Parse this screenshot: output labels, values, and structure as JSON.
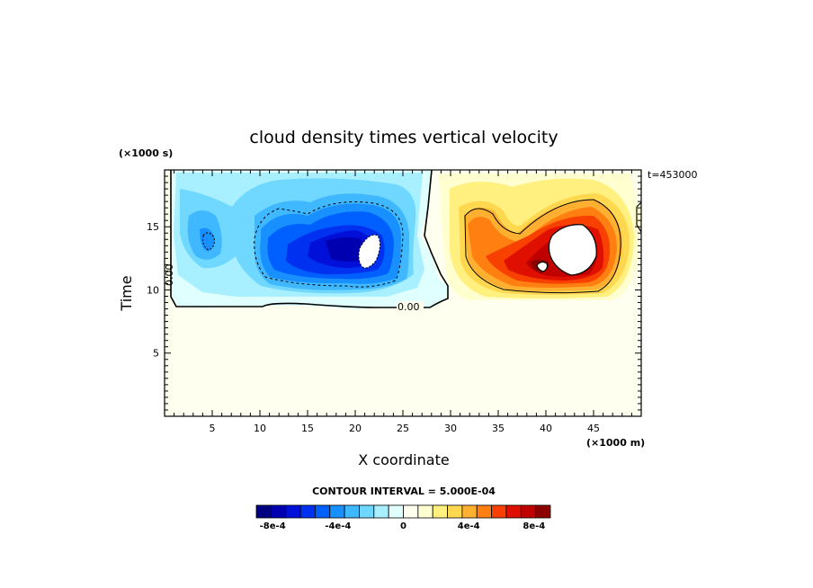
{
  "chart_data": {
    "type": "heatmap",
    "title": "cloud density times vertical velocity",
    "xlabel": "X coordinate",
    "ylabel": "Time",
    "x_unit_label": "(×1000 m)",
    "y_unit_label": "(×1000 s)",
    "time_stamp": "t=453000",
    "xlim": [
      0,
      50
    ],
    "ylim": [
      0,
      19.5
    ],
    "x_ticks": [
      5,
      10,
      15,
      20,
      25,
      30,
      35,
      40,
      45
    ],
    "y_ticks": [
      5,
      10,
      15
    ],
    "contour_interval_text": "CONTOUR INTERVAL = 5.000E-04",
    "zero_contour_label": "0.00",
    "colorbar": {
      "levels": [
        -0.0009,
        -0.00085,
        -0.0008,
        -0.00075,
        -0.0007,
        -0.00065,
        -0.0006,
        -0.00055,
        -0.0005,
        -0.00045,
        -0.0004,
        -0.00035,
        -0.0003,
        -0.00025,
        -0.0002,
        -0.00015,
        -0.0001,
        -5e-05,
        0,
        5e-05,
        0.0001,
        0.00015,
        0.0002,
        0.00025,
        0.0003,
        0.00035,
        0.0004,
        0.00045,
        0.0005,
        0.00055,
        0.0006,
        0.00065,
        0.0007,
        0.00075,
        0.0008,
        0.00085,
        0.0009
      ],
      "colors": [
        "#000080",
        "#0000b0",
        "#0010d8",
        "#0030f0",
        "#0060ff",
        "#1890ff",
        "#40b8ff",
        "#70d8ff",
        "#a8f0ff",
        "#e0ffff",
        "#fffff0",
        "#ffffd0",
        "#fff080",
        "#ffd850",
        "#ffb030",
        "#ff8010",
        "#f84000",
        "#e01000",
        "#c00000",
        "#8c0000"
      ],
      "tick_labels": [
        "-8e-4",
        "-4e-4",
        "0",
        "4e-4",
        "8e-4"
      ],
      "tick_values": [
        -0.0008,
        -0.0004,
        0,
        0.0004,
        0.0008
      ]
    },
    "features": [
      {
        "kind": "negative-core",
        "x": 19.5,
        "y": 14.0,
        "peak": -0.00095
      },
      {
        "kind": "negative-core",
        "x": 4.8,
        "y": 13.8,
        "peak": -0.0006
      },
      {
        "kind": "positive-core",
        "x": 42.5,
        "y": 13.0,
        "peak": 0.001
      },
      {
        "kind": "positive-core",
        "x": 39.5,
        "y": 12.5,
        "peak": 0.0008
      }
    ]
  }
}
